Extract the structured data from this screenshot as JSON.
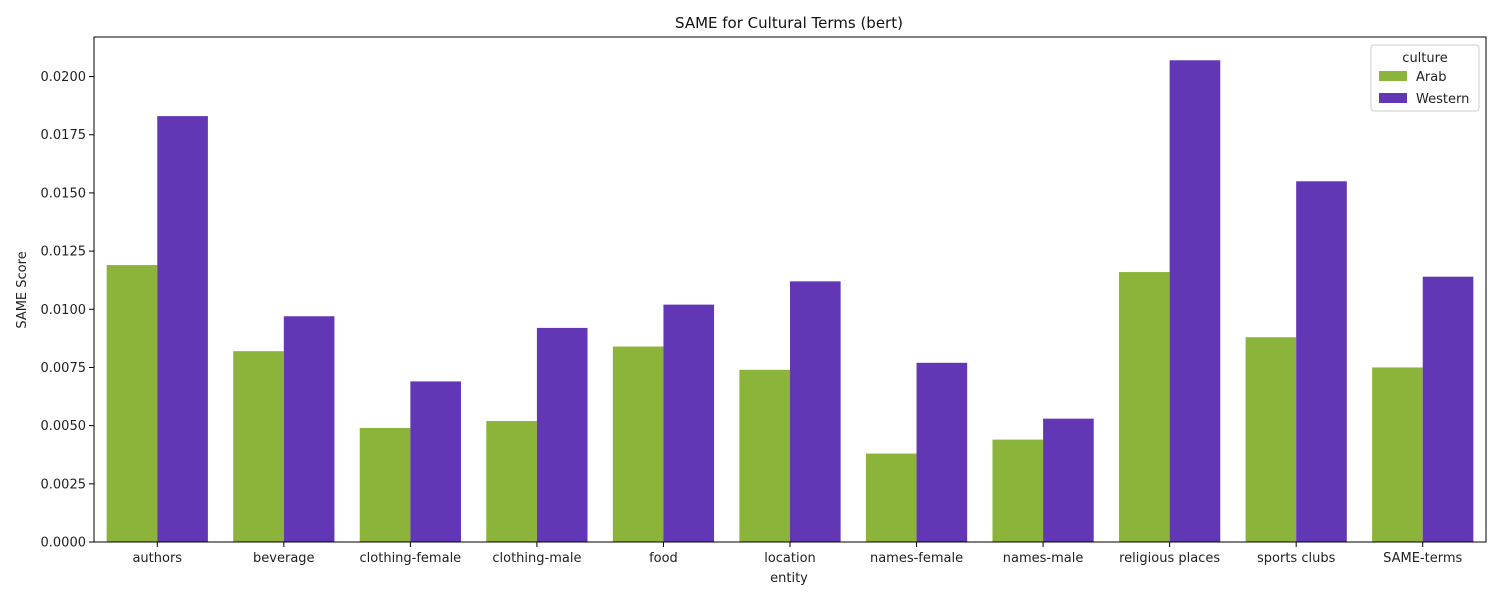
{
  "chart_data": {
    "type": "bar",
    "title": "SAME for Cultural Terms (bert)",
    "xlabel": "entity",
    "ylabel": "SAME Score",
    "ylim": [
      0,
      0.0217
    ],
    "yticks": [
      "0.0000",
      "0.0025",
      "0.0050",
      "0.0075",
      "0.0100",
      "0.0125",
      "0.0150",
      "0.0175",
      "0.0200"
    ],
    "categories": [
      "authors",
      "beverage",
      "clothing-female",
      "clothing-male",
      "food",
      "location",
      "names-female",
      "names-male",
      "religious places",
      "sports clubs",
      "SAME-terms"
    ],
    "legend": {
      "title": "culture",
      "placement": "top-right"
    },
    "grid": false,
    "series": [
      {
        "name": "Arab",
        "color": "#8db43a",
        "values": [
          0.0119,
          0.0082,
          0.0049,
          0.0052,
          0.0084,
          0.0074,
          0.0038,
          0.0044,
          0.0116,
          0.0088,
          0.0075
        ]
      },
      {
        "name": "Western",
        "color": "#6137b5",
        "values": [
          0.0183,
          0.0097,
          0.0069,
          0.0092,
          0.0102,
          0.0112,
          0.0077,
          0.0053,
          0.0207,
          0.0155,
          0.0114
        ]
      }
    ]
  }
}
